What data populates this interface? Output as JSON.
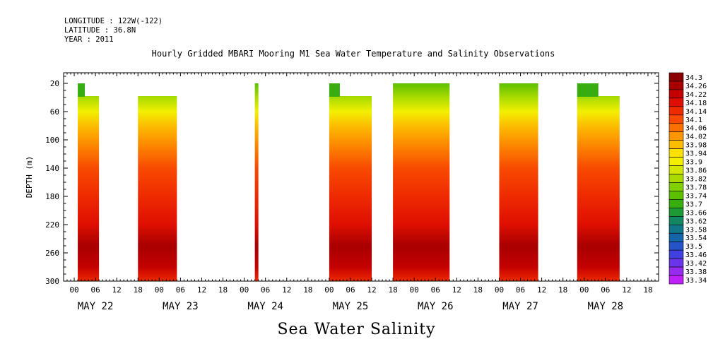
{
  "header": {
    "longitude": "LONGITUDE : 122W(-122)",
    "latitude": "LATITUDE : 36.8N",
    "year": "YEAR : 2011"
  },
  "title": "Hourly Gridded MBARI Mooring M1 Sea Water Temperature and Salinity Observations",
  "bottom_title": "Sea Water Salinity",
  "chart_data": {
    "type": "heatmap",
    "title": "Hourly Gridded MBARI Mooring M1 Sea Water Temperature and Salinity Observations",
    "subtitle": "Sea Water Salinity",
    "xlabel": "",
    "ylabel": "DEPTH (m)",
    "x_hour_labels": [
      "00",
      "06",
      "12",
      "18"
    ],
    "x_day_labels": [
      "MAY 22",
      "MAY 23",
      "MAY 24",
      "MAY 25",
      "MAY 26",
      "MAY 27",
      "MAY 28"
    ],
    "xlim_hours": [
      -3,
      165
    ],
    "y_ticks": [
      20,
      60,
      100,
      140,
      180,
      220,
      260,
      300
    ],
    "ylim": [
      300,
      5
    ],
    "colorbar": {
      "levels": [
        "34.3",
        "34.26",
        "34.22",
        "34.18",
        "34.14",
        "34.1",
        "34.06",
        "34.02",
        "33.98",
        "33.94",
        "33.9",
        "33.86",
        "33.82",
        "33.78",
        "33.74",
        "33.7",
        "33.66",
        "33.62",
        "33.58",
        "33.54",
        "33.5",
        "33.46",
        "33.42",
        "33.38",
        "33.34"
      ],
      "colors": [
        "#8b0000",
        "#a80000",
        "#c40000",
        "#de0f00",
        "#ee2a00",
        "#f84a00",
        "#fb7000",
        "#fd9600",
        "#fdbd00",
        "#fde200",
        "#f2ef00",
        "#d2e600",
        "#aadb00",
        "#82cf00",
        "#5cc000",
        "#38ad10",
        "#1e9a35",
        "#138761",
        "#117688",
        "#1466a8",
        "#2553c8",
        "#4040e0",
        "#6a35ea",
        "#962cf0",
        "#c020f8"
      ]
    },
    "segments": [
      {
        "start": 1,
        "end": 7,
        "top_depth": 38,
        "cap_start": 1,
        "cap_end": 3,
        "cap_depth": 20
      },
      {
        "start": 18,
        "end": 29,
        "top_depth": 38
      },
      {
        "start": 51,
        "end": 52,
        "top_depth": 20
      },
      {
        "start": 72,
        "end": 84,
        "top_depth": 38,
        "cap_start": 72,
        "cap_end": 75,
        "cap_depth": 20
      },
      {
        "start": 90,
        "end": 106,
        "top_depth": 20
      },
      {
        "start": 120,
        "end": 131,
        "top_depth": 20
      },
      {
        "start": 142,
        "end": 154,
        "top_depth": 38,
        "cap_start": 142,
        "cap_end": 148,
        "cap_depth": 20
      }
    ],
    "salinity_profile": [
      {
        "depth": 20,
        "value": 33.74
      },
      {
        "depth": 40,
        "value": 33.82
      },
      {
        "depth": 60,
        "value": 33.9
      },
      {
        "depth": 80,
        "value": 33.98
      },
      {
        "depth": 100,
        "value": 34.04
      },
      {
        "depth": 140,
        "value": 34.12
      },
      {
        "depth": 180,
        "value": 34.14
      },
      {
        "depth": 220,
        "value": 34.18
      },
      {
        "depth": 250,
        "value": 34.26
      },
      {
        "depth": 280,
        "value": 34.2
      },
      {
        "depth": 300,
        "value": 34.16
      }
    ]
  }
}
